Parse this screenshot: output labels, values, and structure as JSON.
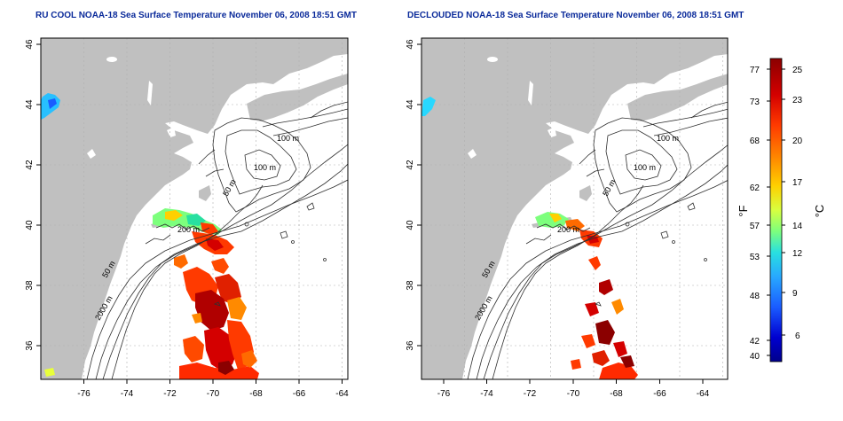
{
  "panels": [
    {
      "title": "RU COOL NOAA-18 Sea Surface Temperature November 06, 2008 18:51 GMT",
      "contour_labels": [
        "100 m",
        "100 m",
        "50 m",
        "200 m",
        "50 m",
        "2000 m"
      ]
    },
    {
      "title": "DECLOUDED NOAA-18 Sea Surface Temperature November 06, 2008 18:51 GMT",
      "contour_labels": [
        "100 m",
        "100 m",
        "50 m",
        "200 m",
        "50 m",
        "2000 m"
      ]
    }
  ],
  "axes": {
    "x_ticks": [
      "-76",
      "-74",
      "-72",
      "-70",
      "-68",
      "-66",
      "-64"
    ],
    "y_ticks": [
      "36",
      "38",
      "40",
      "42",
      "44",
      "46"
    ]
  },
  "colorbar": {
    "fahrenheit_label": "°F",
    "celsius_label": "°C",
    "fahrenheit_ticks": [
      "77",
      "73",
      "68",
      "62",
      "57",
      "53",
      "48",
      "42",
      "40"
    ],
    "celsius_ticks": [
      "25",
      "23",
      "20",
      "17",
      "14",
      "12",
      "9",
      "6"
    ],
    "colors": [
      "#8b0000",
      "#d40000",
      "#ff3a00",
      "#ff8a00",
      "#ffd000",
      "#e8ff3a",
      "#7dff7d",
      "#28e0e0",
      "#28a8ff",
      "#1a5cff",
      "#0000d0",
      "#00008b"
    ]
  },
  "colors": {
    "land": "#c0c0c0",
    "ocean": "#ffffff",
    "contour": "#303030",
    "grid": "#b0b0b0",
    "title": "#0a2a9a"
  }
}
